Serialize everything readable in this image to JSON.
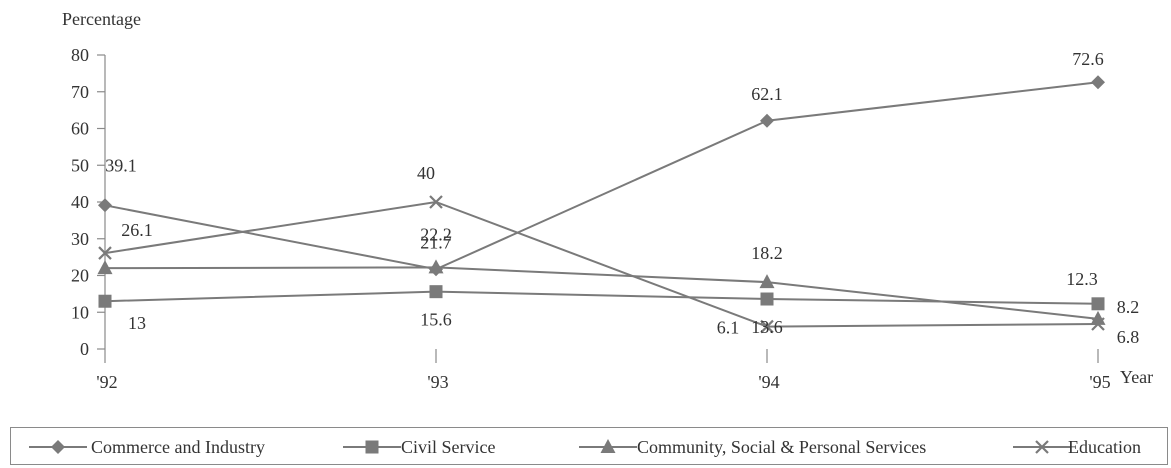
{
  "chart_data": {
    "type": "line",
    "ylabel": "Percentage",
    "xlabel": "Year",
    "categories": [
      "'92",
      "'93",
      "'94",
      "'95"
    ],
    "ylim": [
      0,
      80
    ],
    "yticks": [
      0,
      10,
      20,
      30,
      40,
      50,
      60,
      70,
      80
    ],
    "grid": false,
    "legend_position": "bottom",
    "colors": {
      "line": "#7a7a7a",
      "marker": "#7a7a7a",
      "axis": "#8a8a8a",
      "text": "#333333"
    },
    "series": [
      {
        "name": "Commerce and Industry",
        "marker": "diamond",
        "values": [
          39.1,
          21.7,
          62.1,
          72.6
        ],
        "labels": [
          "39.1",
          "21.7",
          "62.1",
          "72.6"
        ]
      },
      {
        "name": "Civil Service",
        "marker": "square",
        "values": [
          13,
          15.6,
          13.6,
          12.3
        ],
        "labels": [
          "13",
          "15.6",
          "13.6",
          "12.3"
        ]
      },
      {
        "name": "Community, Social & Personal Services",
        "marker": "triangle",
        "values": [
          22,
          22.2,
          18.2,
          8.2
        ],
        "labels": [
          "",
          "22.2",
          "18.2",
          "8.2"
        ]
      },
      {
        "name": "Education",
        "marker": "x",
        "values": [
          26.1,
          40,
          6.1,
          6.8
        ],
        "labels": [
          "26.1",
          "40",
          "6.1",
          "6.8"
        ]
      }
    ]
  }
}
